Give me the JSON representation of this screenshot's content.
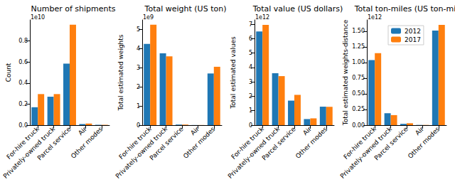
{
  "chart_data": [
    {
      "type": "bar",
      "title": "Number of shipments",
      "ylabel": "Count",
      "y_scale_label": "1e10",
      "categories": [
        "For-hire truck",
        "Privately-owned truck",
        "Parcel service",
        "Air",
        "Other modes"
      ],
      "series": [
        {
          "name": "2012",
          "color": "#1f77b4",
          "values": [
            0.17,
            0.27,
            0.585,
            0.01,
            0.003
          ]
        },
        {
          "name": "2017",
          "color": "#ff7f0e",
          "values": [
            0.295,
            0.295,
            0.955,
            0.015,
            0.003
          ]
        }
      ],
      "ylim": [
        0,
        1.0
      ],
      "yticks": [
        {
          "value": 0,
          "label": "0.0"
        },
        {
          "value": 0.2,
          "label": "0.2"
        },
        {
          "value": 0.4,
          "label": "0.4"
        },
        {
          "value": 0.6,
          "label": "0.6"
        },
        {
          "value": 0.8,
          "label": "0.8"
        }
      ],
      "grid": false
    },
    {
      "type": "bar",
      "title": "Total weight (US ton)",
      "ylabel": "Total estimated weights",
      "y_scale_label": "1e9",
      "categories": [
        "For-hire truck",
        "Privately-owned truck",
        "Parcel service",
        "Air",
        "Other modes"
      ],
      "series": [
        {
          "name": "2012",
          "color": "#1f77b4",
          "values": [
            4.25,
            3.75,
            0.03,
            0.005,
            2.7
          ]
        },
        {
          "name": "2017",
          "color": "#ff7f0e",
          "values": [
            5.25,
            3.6,
            0.03,
            0.005,
            3.05
          ]
        }
      ],
      "ylim": [
        0,
        5.5
      ],
      "yticks": [
        0,
        1,
        2,
        3,
        4,
        5
      ],
      "grid": false
    },
    {
      "type": "bar",
      "title": "Total value (US dollars)",
      "ylabel": "Total estimated values",
      "y_scale_label": "1e12",
      "categories": [
        "For-hire truck",
        "Privately-owned truck",
        "Parcel service",
        "Air",
        "Other modes"
      ],
      "series": [
        {
          "name": "2012",
          "color": "#1f77b4",
          "values": [
            6.5,
            3.6,
            1.7,
            0.42,
            1.28
          ]
        },
        {
          "name": "2017",
          "color": "#ff7f0e",
          "values": [
            6.95,
            3.4,
            2.1,
            0.47,
            1.27
          ]
        }
      ],
      "ylim": [
        0,
        7.3
      ],
      "yticks": [
        0,
        1,
        2,
        3,
        4,
        5,
        6,
        7
      ],
      "grid": false
    },
    {
      "type": "bar",
      "title": "Total ton-miles (US ton-mile)",
      "ylabel": "Total estimated weights-distance",
      "y_scale_label": "1e12",
      "categories": [
        "For-hire truck",
        "Privately-owned truck",
        "Parcel service",
        "Air",
        "Other modes"
      ],
      "series": [
        {
          "name": "2012",
          "color": "#1f77b4",
          "values": [
            1.04,
            0.19,
            0.02,
            0.003,
            1.51
          ]
        },
        {
          "name": "2017",
          "color": "#ff7f0e",
          "values": [
            1.15,
            0.16,
            0.03,
            0.003,
            1.6
          ]
        }
      ],
      "ylim": [
        0,
        1.68
      ],
      "yticks": [
        {
          "value": 0,
          "label": "0.00"
        },
        {
          "value": 0.25,
          "label": "0.25"
        },
        {
          "value": 0.5,
          "label": "0.50"
        },
        {
          "value": 0.75,
          "label": "0.75"
        },
        {
          "value": 1.0,
          "label": "1.00"
        },
        {
          "value": 1.25,
          "label": "1.25"
        },
        {
          "value": 1.5,
          "label": "1.50"
        }
      ],
      "legend": "upper right",
      "grid": false
    }
  ]
}
